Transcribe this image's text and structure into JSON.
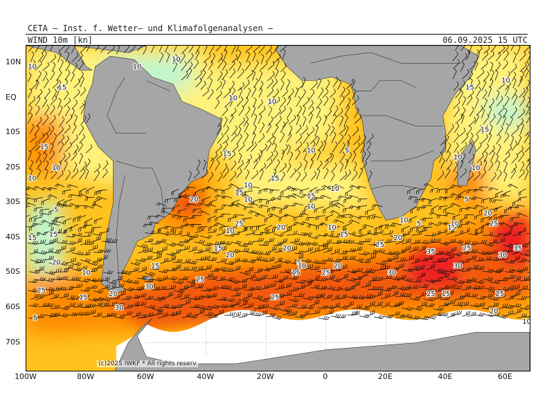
{
  "header": {
    "title": "CETA – Inst. f. Wetter– und Klimafolgenanalysen –",
    "field": "WIND 10m [kn]",
    "datetime": "06.09.2025 15 UTC"
  },
  "credit": "(c)2025 IWKF * All rights reserv",
  "axes": {
    "lat_labels": [
      "10N",
      "EQ",
      "10S",
      "20S",
      "30S",
      "40S",
      "50S",
      "60S",
      "70S"
    ],
    "lat_values": [
      10,
      0,
      -10,
      -20,
      -30,
      -40,
      -50,
      -60,
      -70
    ],
    "lon_labels": [
      "100W",
      "80W",
      "60W",
      "40W",
      "20W",
      "0",
      "20E",
      "40E",
      "60E"
    ],
    "lon_values": [
      -100,
      -80,
      -60,
      -40,
      -20,
      0,
      20,
      40,
      60
    ],
    "lon_range": [
      -100,
      68
    ],
    "lat_range": [
      -78,
      15
    ]
  },
  "colors": {
    "land": "#a6a6a6",
    "ice": "#ffffff",
    "calm": "#bff5cf",
    "light": "#fff27a",
    "moderate": "#ffc21e",
    "fresh": "#ff8c00",
    "strong": "#f25a10",
    "gale": "#ee2222",
    "barb": "#111111"
  },
  "wind_labels": [
    {
      "t": "10",
      "lon": -98,
      "lat": 9
    },
    {
      "t": "15",
      "lon": -88,
      "lat": 3
    },
    {
      "t": "10",
      "lon": -63,
      "lat": 9
    },
    {
      "t": "10",
      "lon": -50,
      "lat": 11
    },
    {
      "t": "10",
      "lon": -31,
      "lat": 0
    },
    {
      "t": "10",
      "lon": -18,
      "lat": -1
    },
    {
      "t": "15",
      "lon": -33,
      "lat": -16
    },
    {
      "t": "10",
      "lon": -5,
      "lat": -15
    },
    {
      "t": "5",
      "lon": 7,
      "lat": -15
    },
    {
      "t": "15",
      "lon": -17,
      "lat": -23
    },
    {
      "t": "10",
      "lon": -26,
      "lat": -25
    },
    {
      "t": "10",
      "lon": 3,
      "lat": -26
    },
    {
      "t": "15",
      "lon": -29,
      "lat": -27
    },
    {
      "t": "10",
      "lon": -26,
      "lat": -29
    },
    {
      "t": "15",
      "lon": -5,
      "lat": -28
    },
    {
      "t": "10",
      "lon": -5,
      "lat": -31
    },
    {
      "t": "15",
      "lon": -94,
      "lat": -14
    },
    {
      "t": "10",
      "lon": -90,
      "lat": -20
    },
    {
      "t": "10",
      "lon": -98,
      "lat": -23
    },
    {
      "t": "5",
      "lon": -90,
      "lat": -32
    },
    {
      "t": "15",
      "lon": -98,
      "lat": -40
    },
    {
      "t": "15",
      "lon": -91,
      "lat": -39
    },
    {
      "t": "20",
      "lon": -90,
      "lat": -47
    },
    {
      "t": "10",
      "lon": -80,
      "lat": -50
    },
    {
      "t": "25",
      "lon": -95,
      "lat": -55
    },
    {
      "t": "15",
      "lon": -81,
      "lat": -57
    },
    {
      "t": "20",
      "lon": -71,
      "lat": -56
    },
    {
      "t": "30",
      "lon": -69,
      "lat": -60
    },
    {
      "t": "5",
      "lon": -97,
      "lat": -63
    },
    {
      "t": "20",
      "lon": -44,
      "lat": -29
    },
    {
      "t": "25",
      "lon": -29,
      "lat": -36
    },
    {
      "t": "10",
      "lon": -32,
      "lat": -38
    },
    {
      "t": "20",
      "lon": -15,
      "lat": -37
    },
    {
      "t": "15",
      "lon": -36,
      "lat": -43
    },
    {
      "t": "20",
      "lon": -32,
      "lat": -45
    },
    {
      "t": "20",
      "lon": -13,
      "lat": -43
    },
    {
      "t": "15",
      "lon": -57,
      "lat": -48
    },
    {
      "t": "30",
      "lon": -59,
      "lat": -54
    },
    {
      "t": "25",
      "lon": -42,
      "lat": -52
    },
    {
      "t": "5",
      "lon": -9,
      "lat": -47
    },
    {
      "t": "10",
      "lon": -8,
      "lat": -48
    },
    {
      "t": "15",
      "lon": -10,
      "lat": -50
    },
    {
      "t": "25",
      "lon": 0,
      "lat": -50
    },
    {
      "t": "20",
      "lon": 4,
      "lat": -48
    },
    {
      "t": "10",
      "lon": 2,
      "lat": -37
    },
    {
      "t": "15",
      "lon": 6,
      "lat": -39
    },
    {
      "t": "25",
      "lon": 18,
      "lat": -42
    },
    {
      "t": "20",
      "lon": 24,
      "lat": -40
    },
    {
      "t": "30",
      "lon": 22,
      "lat": -50
    },
    {
      "t": "35",
      "lon": 35,
      "lat": -44
    },
    {
      "t": "30",
      "lon": 44,
      "lat": -48
    },
    {
      "t": "25",
      "lon": 47,
      "lat": -43
    },
    {
      "t": "15",
      "lon": 42,
      "lat": -37
    },
    {
      "t": "10",
      "lon": 26,
      "lat": -35
    },
    {
      "t": "5",
      "lon": 31,
      "lat": -36
    },
    {
      "t": "10",
      "lon": 43,
      "lat": -36
    },
    {
      "t": "25",
      "lon": 56,
      "lat": -36
    },
    {
      "t": "20",
      "lon": 54,
      "lat": -33
    },
    {
      "t": "35",
      "lon": 64,
      "lat": -43
    },
    {
      "t": "30",
      "lon": 59,
      "lat": -45
    },
    {
      "t": "25",
      "lon": 35,
      "lat": -56
    },
    {
      "t": "15",
      "lon": 40,
      "lat": -56
    },
    {
      "t": "25",
      "lon": 58,
      "lat": -56
    },
    {
      "t": "20",
      "lon": 56,
      "lat": -61
    },
    {
      "t": "10",
      "lon": 67,
      "lat": -64
    },
    {
      "t": "25",
      "lon": -17,
      "lat": -57
    },
    {
      "t": "15",
      "lon": 48,
      "lat": 3
    },
    {
      "t": "10",
      "lon": 60,
      "lat": 5
    },
    {
      "t": "15",
      "lon": 53,
      "lat": -9
    },
    {
      "t": "10",
      "lon": 44,
      "lat": -17
    },
    {
      "t": "10",
      "lon": 50,
      "lat": -20
    },
    {
      "t": "5",
      "lon": 47,
      "lat": -29
    }
  ]
}
